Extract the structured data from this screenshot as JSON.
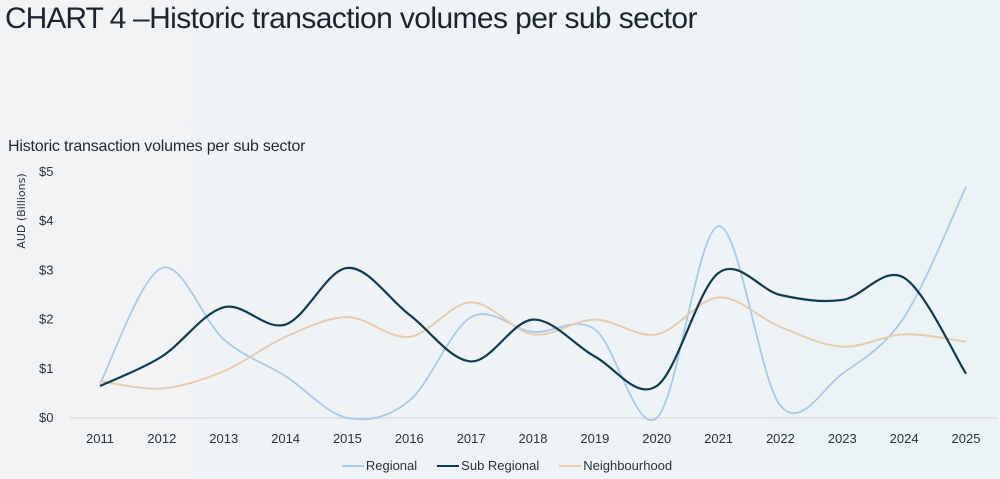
{
  "page": {
    "title_prefix": "CHART 4",
    "title_rest": " –Historic transaction volumes per sub sector"
  },
  "chart_data": {
    "type": "line",
    "title": "Historic transaction volumes per sub sector",
    "xlabel": "",
    "ylabel": "AUD (Billions)",
    "x": [
      "2011",
      "2012",
      "2013",
      "2014",
      "2015",
      "2016",
      "2017",
      "2018",
      "2019",
      "2020",
      "2021",
      "2022",
      "2023",
      "2024",
      "2025"
    ],
    "ylim": [
      0,
      5
    ],
    "yticks": [
      0,
      1,
      2,
      3,
      4,
      5
    ],
    "ytick_labels": [
      "$0",
      "$1",
      "$2",
      "$3",
      "$4",
      "$5"
    ],
    "grid": false,
    "smooth": true,
    "legend_position": "bottom-center",
    "series": [
      {
        "name": "Regional",
        "color": "#a9c9ea",
        "values": [
          0.7,
          3.05,
          1.6,
          0.85,
          0.0,
          0.35,
          2.05,
          1.75,
          1.8,
          0.0,
          3.9,
          0.25,
          0.9,
          2.05,
          4.7
        ]
      },
      {
        "name": "Sub Regional",
        "color": "#0f3a4f",
        "values": [
          0.65,
          1.25,
          2.25,
          1.9,
          3.05,
          2.1,
          1.15,
          2.0,
          1.25,
          0.65,
          2.95,
          2.5,
          2.4,
          2.85,
          0.9
        ]
      },
      {
        "name": "Neighbourhood",
        "color": "#e6ccb0",
        "values": [
          0.75,
          0.6,
          0.95,
          1.65,
          2.05,
          1.65,
          2.35,
          1.7,
          2.0,
          1.7,
          2.45,
          1.85,
          1.45,
          1.7,
          1.55
        ]
      }
    ]
  }
}
